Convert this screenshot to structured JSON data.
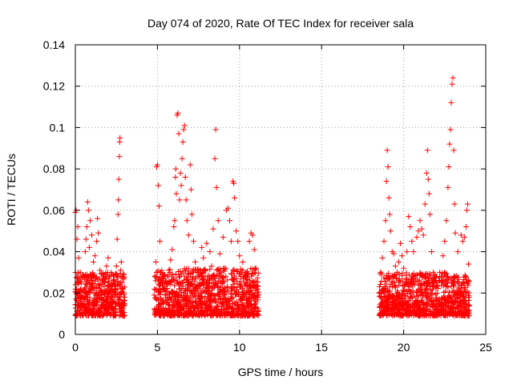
{
  "chart_data": {
    "type": "scatter",
    "title": "Day 074 of 2020, Rate Of TEC Index for receiver sala",
    "xlabel": "GPS time / hours",
    "ylabel": "ROTI / TECUs",
    "xlim": [
      0,
      25
    ],
    "ylim": [
      0,
      0.14
    ],
    "x_ticks": [
      0,
      5,
      10,
      15,
      20,
      25
    ],
    "x_tick_labels": [
      "0",
      "5",
      "10",
      "15",
      "20",
      "25"
    ],
    "y_ticks": [
      0,
      0.02,
      0.04,
      0.06,
      0.08,
      0.1,
      0.12,
      0.14
    ],
    "y_tick_labels": [
      "0",
      "0.02",
      "0.04",
      "0.06",
      "0.08",
      "0.1",
      "0.12",
      "0.14"
    ],
    "grid": true,
    "marker": "plus",
    "color": "#ff0000",
    "series": [
      {
        "points": [
          [
            0.0,
            0.059
          ],
          [
            0.05,
            0.06
          ],
          [
            0.1,
            0.046
          ],
          [
            0.15,
            0.052
          ],
          [
            0.2,
            0.037
          ],
          [
            0.3,
            0.03
          ],
          [
            0.1,
            0.025
          ],
          [
            0.25,
            0.021
          ],
          [
            0.4,
            0.018
          ],
          [
            0.5,
            0.017
          ],
          [
            0.55,
            0.022
          ],
          [
            0.6,
            0.04
          ],
          [
            0.65,
            0.046
          ],
          [
            0.7,
            0.052
          ],
          [
            0.75,
            0.064
          ],
          [
            0.8,
            0.06
          ],
          [
            0.9,
            0.055
          ],
          [
            0.85,
            0.042
          ],
          [
            1.0,
            0.048
          ],
          [
            1.1,
            0.035
          ],
          [
            1.2,
            0.038
          ],
          [
            1.3,
            0.045
          ],
          [
            1.35,
            0.056
          ],
          [
            1.4,
            0.049
          ],
          [
            1.5,
            0.031
          ],
          [
            1.6,
            0.029
          ],
          [
            1.7,
            0.027
          ],
          [
            1.8,
            0.025
          ],
          [
            1.9,
            0.033
          ],
          [
            2.0,
            0.037
          ],
          [
            2.1,
            0.028
          ],
          [
            2.2,
            0.024
          ],
          [
            2.3,
            0.02
          ],
          [
            2.4,
            0.022
          ],
          [
            2.5,
            0.033
          ],
          [
            2.55,
            0.046
          ],
          [
            2.6,
            0.058
          ],
          [
            2.62,
            0.065
          ],
          [
            2.65,
            0.075
          ],
          [
            2.68,
            0.086
          ],
          [
            2.7,
            0.093
          ],
          [
            2.72,
            0.095
          ],
          [
            2.75,
            0.031
          ],
          [
            2.8,
            0.035
          ],
          [
            2.85,
            0.028
          ],
          [
            2.9,
            0.022
          ],
          [
            2.95,
            0.02
          ],
          [
            3.0,
            0.018
          ]
        ]
      },
      {
        "points": [
          [
            4.8,
            0.019
          ],
          [
            4.85,
            0.028
          ],
          [
            4.9,
            0.035
          ],
          [
            4.95,
            0.081
          ],
          [
            5.0,
            0.082
          ],
          [
            5.05,
            0.072
          ],
          [
            5.1,
            0.062
          ],
          [
            5.15,
            0.045
          ],
          [
            5.2,
            0.03
          ],
          [
            5.3,
            0.025
          ],
          [
            5.5,
            0.022
          ],
          [
            5.6,
            0.028
          ],
          [
            5.7,
            0.031
          ],
          [
            5.8,
            0.036
          ],
          [
            5.9,
            0.041
          ],
          [
            6.0,
            0.052
          ],
          [
            6.05,
            0.055
          ],
          [
            6.1,
            0.076
          ],
          [
            6.12,
            0.08
          ],
          [
            6.15,
            0.068
          ],
          [
            6.2,
            0.106
          ],
          [
            6.25,
            0.107
          ],
          [
            6.3,
            0.097
          ],
          [
            6.35,
            0.065
          ],
          [
            6.4,
            0.078
          ],
          [
            6.45,
            0.072
          ],
          [
            6.5,
            0.085
          ],
          [
            6.55,
            0.093
          ],
          [
            6.6,
            0.099
          ],
          [
            6.65,
            0.101
          ],
          [
            6.7,
            0.076
          ],
          [
            6.75,
            0.065
          ],
          [
            6.8,
            0.055
          ],
          [
            6.9,
            0.048
          ],
          [
            7.0,
            0.082
          ],
          [
            7.05,
            0.07
          ],
          [
            7.1,
            0.058
          ],
          [
            7.2,
            0.045
          ],
          [
            7.3,
            0.035
          ],
          [
            7.5,
            0.03
          ],
          [
            7.7,
            0.042
          ],
          [
            7.8,
            0.037
          ],
          [
            8.0,
            0.044
          ],
          [
            8.2,
            0.04
          ],
          [
            8.3,
            0.033
          ],
          [
            8.4,
            0.051
          ],
          [
            8.5,
            0.085
          ],
          [
            8.55,
            0.099
          ],
          [
            8.6,
            0.071
          ],
          [
            8.7,
            0.055
          ],
          [
            8.8,
            0.039
          ],
          [
            9.0,
            0.047
          ],
          [
            9.1,
            0.032
          ],
          [
            9.2,
            0.06
          ],
          [
            9.3,
            0.061
          ],
          [
            9.4,
            0.055
          ],
          [
            9.5,
            0.045
          ],
          [
            9.6,
            0.074
          ],
          [
            9.65,
            0.073
          ],
          [
            9.7,
            0.066
          ],
          [
            9.8,
            0.05
          ],
          [
            9.9,
            0.045
          ],
          [
            10.0,
            0.038
          ],
          [
            10.2,
            0.035
          ],
          [
            10.4,
            0.03
          ],
          [
            10.6,
            0.045
          ],
          [
            10.7,
            0.049
          ],
          [
            10.8,
            0.048
          ],
          [
            10.9,
            0.041
          ],
          [
            11.0,
            0.032
          ],
          [
            11.05,
            0.022
          ],
          [
            11.1,
            0.018
          ]
        ]
      },
      {
        "points": [
          [
            18.5,
            0.02
          ],
          [
            18.6,
            0.03
          ],
          [
            18.7,
            0.037
          ],
          [
            18.8,
            0.045
          ],
          [
            18.9,
            0.055
          ],
          [
            18.95,
            0.074
          ],
          [
            19.0,
            0.089
          ],
          [
            19.05,
            0.081
          ],
          [
            19.1,
            0.066
          ],
          [
            19.15,
            0.058
          ],
          [
            19.2,
            0.05
          ],
          [
            19.3,
            0.04
          ],
          [
            19.4,
            0.039
          ],
          [
            19.5,
            0.033
          ],
          [
            19.6,
            0.03
          ],
          [
            19.7,
            0.035
          ],
          [
            19.8,
            0.044
          ],
          [
            19.9,
            0.038
          ],
          [
            20.0,
            0.032
          ],
          [
            20.2,
            0.04
          ],
          [
            20.3,
            0.057
          ],
          [
            20.4,
            0.052
          ],
          [
            20.5,
            0.045
          ],
          [
            20.6,
            0.04
          ],
          [
            20.8,
            0.047
          ],
          [
            20.9,
            0.05
          ],
          [
            21.0,
            0.055
          ],
          [
            21.1,
            0.051
          ],
          [
            21.2,
            0.048
          ],
          [
            21.3,
            0.063
          ],
          [
            21.4,
            0.078
          ],
          [
            21.45,
            0.089
          ],
          [
            21.5,
            0.075
          ],
          [
            21.55,
            0.068
          ],
          [
            21.6,
            0.058
          ],
          [
            21.7,
            0.04
          ],
          [
            21.8,
            0.03
          ],
          [
            22.0,
            0.025
          ],
          [
            22.2,
            0.03
          ],
          [
            22.4,
            0.038
          ],
          [
            22.5,
            0.045
          ],
          [
            22.6,
            0.055
          ],
          [
            22.7,
            0.071
          ],
          [
            22.75,
            0.081
          ],
          [
            22.8,
            0.092
          ],
          [
            22.85,
            0.099
          ],
          [
            22.9,
            0.112
          ],
          [
            22.95,
            0.121
          ],
          [
            23.0,
            0.124
          ],
          [
            23.05,
            0.089
          ],
          [
            23.1,
            0.063
          ],
          [
            23.15,
            0.049
          ],
          [
            23.3,
            0.04
          ],
          [
            23.5,
            0.048
          ],
          [
            23.6,
            0.045
          ],
          [
            23.7,
            0.047
          ],
          [
            23.8,
            0.052
          ],
          [
            23.85,
            0.06
          ],
          [
            23.9,
            0.063
          ],
          [
            23.95,
            0.034
          ],
          [
            24.0,
            0.018
          ]
        ]
      }
    ],
    "dense_bands": [
      {
        "x_range": [
          0.0,
          3.0
        ],
        "y_range": [
          0.003,
          0.03
        ]
      },
      {
        "x_range": [
          4.8,
          11.15
        ],
        "y_range": [
          0.003,
          0.032
        ]
      },
      {
        "x_range": [
          18.5,
          24.0
        ],
        "y_range": [
          0.003,
          0.03
        ]
      }
    ]
  }
}
